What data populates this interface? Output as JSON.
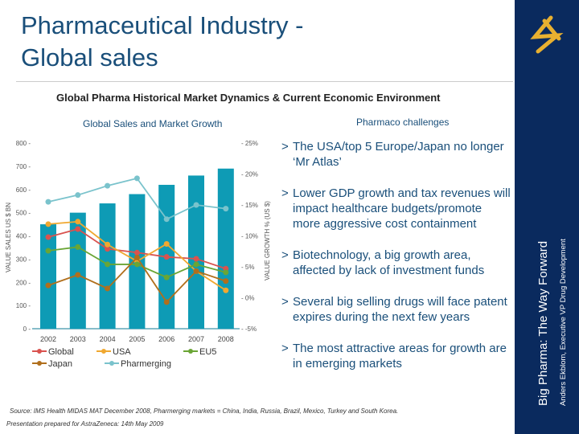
{
  "title_line1": "Pharmaceutical Industry -",
  "title_line2": "Global sales",
  "subtitle": "Global Pharma Historical Market Dynamics & Current Economic Environment",
  "chart_heading": "Global Sales and Market Growth",
  "challenges_heading": "Pharmaco challenges",
  "bullets": [
    "The USA/top 5 Europe/Japan no longer ‘Mr Atlas’",
    "Lower GDP growth and tax revenues will impact healthcare budgets/promote more aggressive cost containment",
    "Biotechnology, a big growth area, affected by lack of investment funds",
    "Several big selling drugs will face patent expires during the next few years",
    "The most attractive areas for growth are in emerging markets"
  ],
  "bullet_glyph": ">",
  "source": "Source: IMS Health MIDAS MAT December 2008, Pharmerging markets = China, India, Russia, Brazil, Mexico, Turkey and South Korea.",
  "prepared": "Presentation prepared for AstraZeneca: 14th May 2009",
  "side_title": "Big Pharma: The Way Forward",
  "side_author": "Anders Ekblom, Executive VP Drug Development",
  "colors": {
    "sidebar": "#0a2a5e",
    "bar": "#0e9bb5",
    "Global": "#d9534f",
    "USA": "#f0a830",
    "EU5": "#6aa535",
    "Japan": "#b06f1c",
    "Pharmerging": "#7ac3cc"
  },
  "chart_data": {
    "type": "bar+line",
    "categories": [
      "2002",
      "2003",
      "2004",
      "2005",
      "2006",
      "2007",
      "2008"
    ],
    "bars": {
      "values": [
        450,
        500,
        540,
        580,
        620,
        660,
        690
      ],
      "axis": "left"
    },
    "ylabel": "VALUE SALES US $ BN",
    "ylim": [
      0,
      800
    ],
    "yticks": [
      "0",
      "100",
      "200",
      "300",
      "400",
      "500",
      "600",
      "700",
      "800"
    ],
    "y2label": "VALUE GROWTH % (US $)",
    "y2lim": [
      -5,
      25
    ],
    "y2ticks": [
      "-5%",
      "0%",
      "5%",
      "10%",
      "15%",
      "20%",
      "25%"
    ],
    "series": [
      {
        "name": "Global",
        "values": [
          9.8,
          11.1,
          7.9,
          7.3,
          6.6,
          6.3,
          4.7
        ]
      },
      {
        "name": "USA",
        "values": [
          11.9,
          12.3,
          8.6,
          5.9,
          8.7,
          4.3,
          1.2
        ]
      },
      {
        "name": "EU5",
        "values": [
          7.6,
          8.2,
          5.4,
          5.4,
          3.3,
          5.4,
          4.1
        ]
      },
      {
        "name": "Japan",
        "values": [
          2.0,
          3.7,
          1.5,
          6.5,
          -0.7,
          4.3,
          2.7
        ]
      },
      {
        "name": "Pharmerging",
        "values": [
          15.5,
          16.6,
          18.1,
          19.3,
          12.7,
          15.0,
          14.4
        ]
      }
    ],
    "legend": "bottom"
  }
}
